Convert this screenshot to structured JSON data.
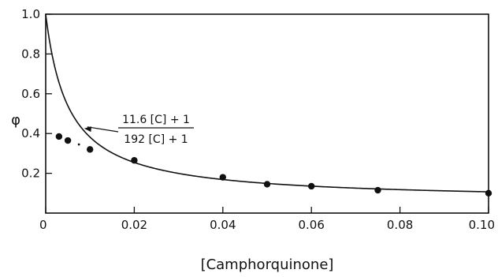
{
  "chart_data": {
    "type": "scatter",
    "xlabel": "[Camphorquinone]",
    "ylabel": "φ",
    "xlim": [
      0,
      0.1
    ],
    "ylim": [
      0,
      1.0
    ],
    "x_ticks": [
      "0",
      "0.02",
      "0.04",
      "0.06",
      "0.08",
      "0.10"
    ],
    "y_ticks": [
      "0.2",
      "0.4",
      "0.6",
      "0.8",
      "1.0"
    ],
    "grid": false,
    "series": [
      {
        "kind": "points",
        "x": [
          0.003,
          0.005,
          0.01,
          0.02,
          0.04,
          0.05,
          0.06,
          0.075,
          0.1
        ],
        "y": [
          0.385,
          0.365,
          0.32,
          0.265,
          0.18,
          0.145,
          0.135,
          0.115,
          0.1
        ]
      },
      {
        "kind": "curve",
        "equation": {
          "a": 11.6,
          "b": 192
        }
      }
    ],
    "annotation": {
      "numerator": "11.6 [C] + 1",
      "denominator": "192 [C] + 1",
      "points_to_x": 0.0085
    },
    "extra_marks": {
      "dash_between_points": {
        "x": 0.0075,
        "y": 0.345
      }
    },
    "colors": {
      "ink": "#111111",
      "background": "#ffffff"
    }
  }
}
